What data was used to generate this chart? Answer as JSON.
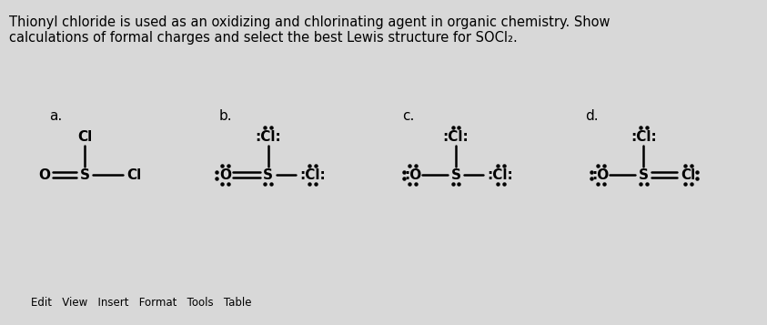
{
  "title_line1": "Thionyl chloride is used as an oxidizing and chlorinating agent in organic chemistry. Show",
  "title_line2": "calculations of formal charges and select the best Lewis structure for SOCl₂.",
  "bg_color": "#d8d8d8",
  "labels": [
    "a.",
    "b.",
    "c.",
    "d."
  ],
  "footer": "Edit   View   Insert   Format   Tools   Table",
  "fs_title": 10.5,
  "fs_label": 11,
  "fs_struct": 11,
  "fs_footer": 8.5
}
